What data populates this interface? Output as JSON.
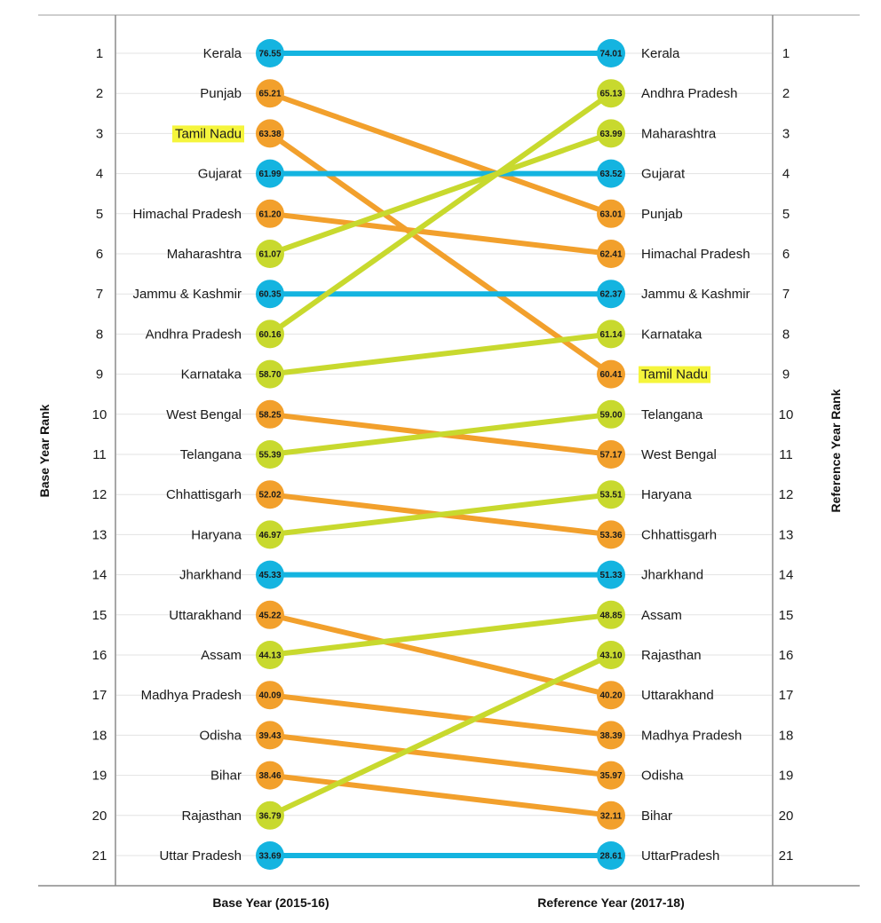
{
  "chart_data": {
    "type": "slope",
    "xlabel_left": "Base Year (2015-16)",
    "xlabel_right": "Reference Year (2017-18)",
    "ylabel_left": "Base Year Rank",
    "ylabel_right": "Reference Year Rank",
    "ranks": [
      1,
      2,
      3,
      4,
      5,
      6,
      7,
      8,
      9,
      10,
      11,
      12,
      13,
      14,
      15,
      16,
      17,
      18,
      19,
      20,
      21
    ],
    "highlight_state": "Tamil Nadu",
    "highlight_color": "#f5f53c",
    "colors": {
      "unchanged": "#14b4e0",
      "declined": "#f2a02c",
      "improved": "#c8d92e"
    },
    "base": [
      {
        "name": "Kerala",
        "value": "76.55"
      },
      {
        "name": "Punjab",
        "value": "65.21"
      },
      {
        "name": "Tamil Nadu",
        "value": "63.38"
      },
      {
        "name": "Gujarat",
        "value": "61.99"
      },
      {
        "name": "Himachal Pradesh",
        "value": "61.20"
      },
      {
        "name": "Maharashtra",
        "value": "61.07"
      },
      {
        "name": "Jammu & Kashmir",
        "value": "60.35"
      },
      {
        "name": "Andhra Pradesh",
        "value": "60.16"
      },
      {
        "name": "Karnataka",
        "value": "58.70"
      },
      {
        "name": "West Bengal",
        "value": "58.25"
      },
      {
        "name": "Telangana",
        "value": "55.39"
      },
      {
        "name": "Chhattisgarh",
        "value": "52.02"
      },
      {
        "name": "Haryana",
        "value": "46.97"
      },
      {
        "name": "Jharkhand",
        "value": "45.33"
      },
      {
        "name": "Uttarakhand",
        "value": "45.22"
      },
      {
        "name": "Assam",
        "value": "44.13"
      },
      {
        "name": "Madhya Pradesh",
        "value": "40.09"
      },
      {
        "name": "Odisha",
        "value": "39.43"
      },
      {
        "name": "Bihar",
        "value": "38.46"
      },
      {
        "name": "Rajasthan",
        "value": "36.79"
      },
      {
        "name": "Uttar Pradesh",
        "value": "33.69"
      }
    ],
    "reference": [
      {
        "name": "Kerala",
        "value": "74.01"
      },
      {
        "name": "Andhra Pradesh",
        "value": "65.13"
      },
      {
        "name": "Maharashtra",
        "value": "63.99"
      },
      {
        "name": "Gujarat",
        "value": "63.52"
      },
      {
        "name": "Punjab",
        "value": "63.01"
      },
      {
        "name": "Himachal Pradesh",
        "value": "62.41"
      },
      {
        "name": "Jammu & Kashmir",
        "value": "62.37"
      },
      {
        "name": "Karnataka",
        "value": "61.14"
      },
      {
        "name": "Tamil Nadu",
        "value": "60.41"
      },
      {
        "name": "Telangana",
        "value": "59.00"
      },
      {
        "name": "West Bengal",
        "value": "57.17"
      },
      {
        "name": "Haryana",
        "value": "53.51"
      },
      {
        "name": "Chhattisgarh",
        "value": "53.36"
      },
      {
        "name": "Jharkhand",
        "value": "51.33"
      },
      {
        "name": "Assam",
        "value": "48.85"
      },
      {
        "name": "Rajasthan",
        "value": "43.10"
      },
      {
        "name": "Uttarakhand",
        "value": "40.20"
      },
      {
        "name": "Madhya Pradesh",
        "value": "38.39"
      },
      {
        "name": "Odisha",
        "value": "35.97"
      },
      {
        "name": "Bihar",
        "value": "32.11"
      },
      {
        "name": "UttarPradesh",
        "value": "28.61"
      }
    ],
    "grid": true
  }
}
